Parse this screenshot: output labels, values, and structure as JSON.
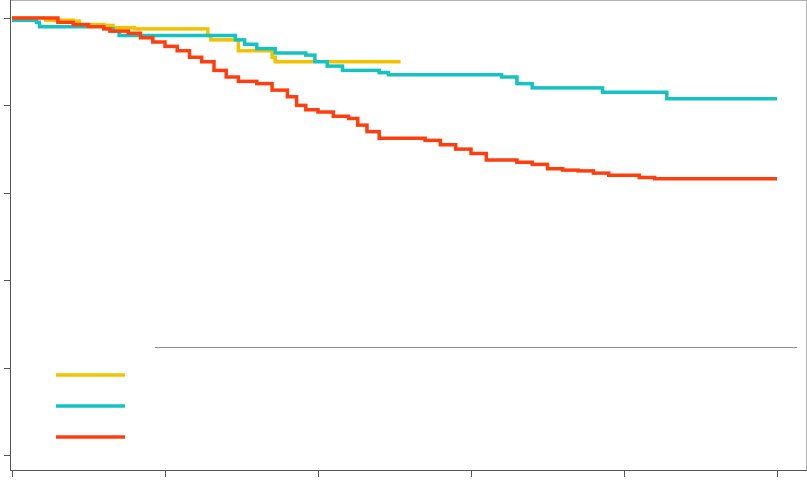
{
  "chart_data": {
    "type": "line",
    "title": "",
    "xlabel": "",
    "ylabel": "",
    "xlim": [
      0,
      25
    ],
    "ylim": [
      0,
      1
    ],
    "x_ticks": [
      0,
      5,
      10,
      15,
      20,
      25
    ],
    "y_ticks": [
      0,
      0.2,
      0.4,
      0.6,
      0.8,
      1.0
    ],
    "grid": false,
    "legend_position": "bottom-left",
    "series": [
      {
        "color": "#f2c200",
        "points": [
          [
            0,
            1.0
          ],
          [
            1.0,
            1.0
          ],
          [
            1.1,
            0.995
          ],
          [
            2.0,
            0.993
          ],
          [
            2.2,
            0.985
          ],
          [
            3.0,
            0.983
          ],
          [
            3.3,
            0.978
          ],
          [
            4.0,
            0.975
          ],
          [
            6.3,
            0.975
          ],
          [
            6.4,
            0.96
          ],
          [
            6.5,
            0.95
          ],
          [
            7.2,
            0.95
          ],
          [
            7.4,
            0.925
          ],
          [
            8.3,
            0.925
          ],
          [
            8.5,
            0.91
          ],
          [
            8.6,
            0.9
          ],
          [
            10.5,
            0.9
          ],
          [
            12.7,
            0.9
          ]
        ]
      },
      {
        "color": "#15c2c2",
        "points": [
          [
            0,
            0.995
          ],
          [
            0.8,
            0.99
          ],
          [
            0.9,
            0.98
          ],
          [
            2.0,
            0.98
          ],
          [
            3.0,
            0.975
          ],
          [
            3.3,
            0.97
          ],
          [
            3.5,
            0.96
          ],
          [
            4.0,
            0.96
          ],
          [
            6.5,
            0.96
          ],
          [
            7.3,
            0.95
          ],
          [
            7.6,
            0.94
          ],
          [
            8.0,
            0.93
          ],
          [
            8.6,
            0.92
          ],
          [
            9.6,
            0.915
          ],
          [
            9.9,
            0.9
          ],
          [
            10.3,
            0.89
          ],
          [
            10.8,
            0.88
          ],
          [
            12.0,
            0.875
          ],
          [
            12.3,
            0.87
          ],
          [
            15.0,
            0.87
          ],
          [
            16.0,
            0.865
          ],
          [
            16.5,
            0.85
          ],
          [
            17.0,
            0.84
          ],
          [
            19.0,
            0.84
          ],
          [
            19.3,
            0.83
          ],
          [
            21.3,
            0.83
          ],
          [
            21.4,
            0.815
          ],
          [
            25.0,
            0.815
          ]
        ]
      },
      {
        "color": "#ff3e10",
        "points": [
          [
            0,
            1.0
          ],
          [
            1.5,
            0.99
          ],
          [
            2.0,
            0.985
          ],
          [
            2.5,
            0.98
          ],
          [
            3.0,
            0.975
          ],
          [
            3.2,
            0.97
          ],
          [
            3.8,
            0.965
          ],
          [
            4.2,
            0.955
          ],
          [
            4.6,
            0.945
          ],
          [
            5.0,
            0.935
          ],
          [
            5.4,
            0.925
          ],
          [
            5.8,
            0.91
          ],
          [
            6.2,
            0.9
          ],
          [
            6.6,
            0.88
          ],
          [
            7.0,
            0.865
          ],
          [
            7.4,
            0.855
          ],
          [
            8.0,
            0.85
          ],
          [
            8.5,
            0.835
          ],
          [
            9.0,
            0.82
          ],
          [
            9.3,
            0.8
          ],
          [
            9.6,
            0.79
          ],
          [
            10.0,
            0.785
          ],
          [
            10.5,
            0.775
          ],
          [
            11.0,
            0.77
          ],
          [
            11.3,
            0.755
          ],
          [
            11.6,
            0.74
          ],
          [
            12.0,
            0.725
          ],
          [
            13.0,
            0.725
          ],
          [
            13.5,
            0.72
          ],
          [
            14.0,
            0.71
          ],
          [
            14.5,
            0.7
          ],
          [
            15.0,
            0.69
          ],
          [
            15.5,
            0.675
          ],
          [
            16.5,
            0.67
          ],
          [
            17.0,
            0.665
          ],
          [
            17.5,
            0.655
          ],
          [
            18.0,
            0.652
          ],
          [
            18.5,
            0.65
          ],
          [
            19.0,
            0.645
          ],
          [
            19.5,
            0.64
          ],
          [
            20.2,
            0.64
          ],
          [
            20.5,
            0.635
          ],
          [
            21.0,
            0.632
          ],
          [
            25.0,
            0.632
          ]
        ]
      }
    ]
  }
}
